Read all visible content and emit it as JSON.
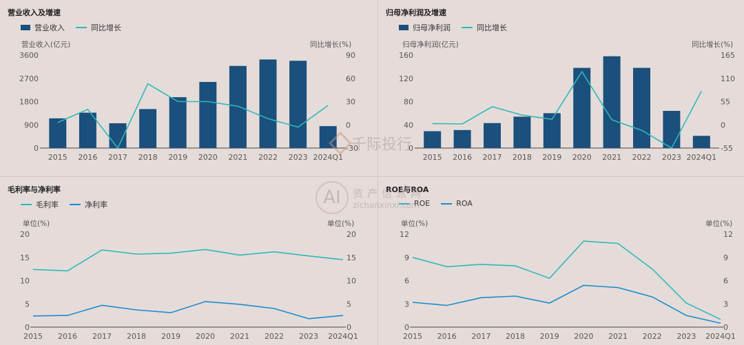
{
  "colors": {
    "bar": "#1b4f7c",
    "line_teal": "#2fb8b6",
    "line_blue": "#1a8ccc",
    "axis": "#444444"
  },
  "watermark": {
    "brand": "千际投行",
    "site_cn": "资产信息网",
    "site_en": "zichanxinxi.com",
    "logo_text": "AI"
  },
  "panels": [
    {
      "title": "营业收入及增速",
      "legend": [
        "营业收入",
        "同比增长"
      ],
      "left_unit": "营业收入(亿元)",
      "right_unit": "同比增长(%)"
    },
    {
      "title": "归母净利润及增速",
      "legend": [
        "归母净利润",
        "同比增长"
      ],
      "left_unit": "归母净利润(亿元)",
      "right_unit": "同比增长(%)"
    },
    {
      "title": "毛利率与净利率",
      "legend": [
        "毛利率",
        "净利率"
      ],
      "left_unit": "单位(%)",
      "right_unit": "单位(%)"
    },
    {
      "title": "ROE与ROA",
      "legend": [
        "ROE",
        "ROA"
      ],
      "left_unit": "单位(%)",
      "right_unit": "单位(%)"
    }
  ],
  "chart_data": [
    {
      "type": "bar",
      "title": "营业收入及增速",
      "categories": [
        "2015",
        "2016",
        "2017",
        "2018",
        "2019",
        "2020",
        "2021",
        "2022",
        "2023",
        "2024Q1"
      ],
      "ylim": [
        0,
        3600
      ],
      "yticks": [
        "0",
        "900",
        "1800",
        "2700",
        "3600"
      ],
      "y2lim": [
        -30,
        90
      ],
      "y2ticks": [
        "-30",
        "0",
        "30",
        "60",
        "90"
      ],
      "series": [
        {
          "name": "营业收入",
          "kind": "bar",
          "axis": "left",
          "values": [
            1150,
            1370,
            960,
            1510,
            1970,
            2560,
            3180,
            3430,
            3380,
            850
          ]
        },
        {
          "name": "同比增长",
          "kind": "line",
          "axis": "right",
          "values": [
            3,
            20,
            -30,
            53,
            30,
            30,
            24,
            8,
            -3,
            25
          ]
        }
      ]
    },
    {
      "type": "bar",
      "title": "归母净利润及增速",
      "categories": [
        "2015",
        "2016",
        "2017",
        "2018",
        "2019",
        "2020",
        "2021",
        "2022",
        "2023",
        "2024Q1"
      ],
      "ylim": [
        0,
        160
      ],
      "yticks": [
        "0",
        "40",
        "80",
        "120",
        "160"
      ],
      "y2lim": [
        -55,
        165
      ],
      "y2ticks": [
        "-55",
        "0",
        "55",
        "110",
        "165"
      ],
      "series": [
        {
          "name": "归母净利润",
          "kind": "bar",
          "axis": "left",
          "values": [
            29,
            31,
            43,
            54,
            60,
            138,
            158,
            138,
            64,
            21
          ]
        },
        {
          "name": "同比增长",
          "kind": "line",
          "axis": "right",
          "values": [
            3,
            2,
            43,
            23,
            13,
            126,
            12,
            -13,
            -55,
            80
          ]
        }
      ]
    },
    {
      "type": "line",
      "title": "毛利率与净利率",
      "categories": [
        "2015",
        "2016",
        "2017",
        "2018",
        "2019",
        "2020",
        "2021",
        "2022",
        "2023",
        "2024Q1"
      ],
      "ylim": [
        0,
        20
      ],
      "yticks": [
        "0",
        "5",
        "10",
        "15",
        "20"
      ],
      "y2ticks": [
        "0",
        "5",
        "10",
        "15",
        "20"
      ],
      "series": [
        {
          "name": "毛利率",
          "kind": "line",
          "color": "teal",
          "values": [
            12.4,
            12.1,
            16.6,
            15.7,
            15.9,
            16.7,
            15.5,
            16.2,
            15.3,
            14.5
          ]
        },
        {
          "name": "净利率",
          "kind": "line",
          "color": "blue",
          "values": [
            2.4,
            2.5,
            4.7,
            3.7,
            3.1,
            5.5,
            4.9,
            4.0,
            1.8,
            2.5
          ]
        }
      ]
    },
    {
      "type": "line",
      "title": "ROE与ROA",
      "categories": [
        "2015",
        "2016",
        "2017",
        "2018",
        "2019",
        "2020",
        "2021",
        "2022",
        "2023",
        "2024Q1"
      ],
      "ylim": [
        0,
        12
      ],
      "yticks": [
        "0",
        "3",
        "6",
        "9",
        "12"
      ],
      "y2ticks": [
        "0",
        "3",
        "6",
        "9",
        "12"
      ],
      "series": [
        {
          "name": "ROE",
          "kind": "line",
          "color": "teal",
          "values": [
            9.0,
            7.8,
            8.1,
            7.9,
            6.3,
            11.1,
            10.8,
            7.5,
            3.1,
            1.0
          ]
        },
        {
          "name": "ROA",
          "kind": "line",
          "color": "blue",
          "values": [
            3.2,
            2.8,
            3.8,
            4.0,
            3.1,
            5.4,
            5.1,
            3.9,
            1.5,
            0.5
          ]
        }
      ]
    }
  ]
}
